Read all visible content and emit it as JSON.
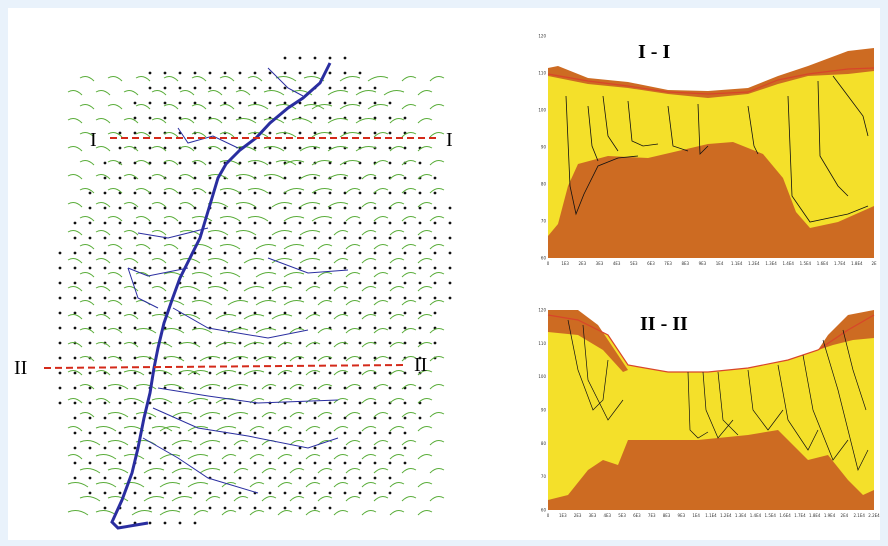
{
  "map": {
    "section_1_left": "I",
    "section_1_right": "I",
    "section_2_left": "II",
    "section_2_right": "II"
  },
  "section_1": {
    "title": "I - I",
    "y_ticks": [
      "120",
      "110",
      "100",
      "90",
      "80",
      "70",
      "60"
    ],
    "x_ticks": [
      "0",
      "1E3",
      "2E3",
      "3E3",
      "4E3",
      "5E3",
      "6E3",
      "7E3",
      "8E3",
      "9E3",
      "1E4",
      "1.1E4",
      "1.2E4",
      "1.3E4",
      "1.4E4",
      "1.5E4",
      "1.6E4",
      "1.7E4",
      "1.8E4",
      "2E"
    ]
  },
  "section_2": {
    "title": "II - II",
    "y_ticks": [
      "120",
      "110",
      "100",
      "90",
      "80",
      "70",
      "60"
    ],
    "x_ticks": [
      "0",
      "1E3",
      "2E3",
      "3E3",
      "4E3",
      "5E3",
      "6E3",
      "7E3",
      "8E3",
      "9E3",
      "1E4",
      "1.1E4",
      "1.2E4",
      "1.3E4",
      "1.4E4",
      "1.5E4",
      "1.6E4",
      "1.7E4",
      "1.8E4",
      "1.9E4",
      "2E4",
      "2.1E4",
      "2.2E4"
    ]
  },
  "colors": {
    "upper_layer": "#f4e02a",
    "lower_layer": "#cd6b22",
    "surface_line": "#d8452a",
    "section_line": "#d42a1a",
    "river": "#2a2ea0",
    "flowline": "#5aad3a",
    "grid_point": "#111111"
  }
}
